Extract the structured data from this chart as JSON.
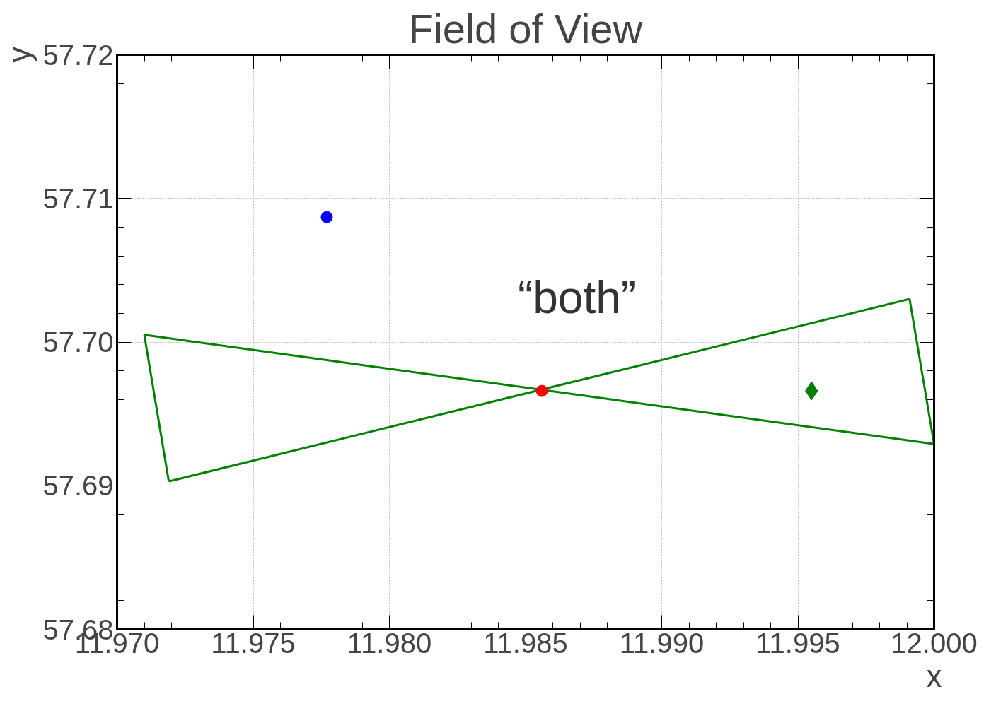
{
  "chart_data": {
    "type": "scatter",
    "title": "Field of View",
    "xlabel": "x",
    "ylabel": "y",
    "xlim": [
      11.97,
      12.0
    ],
    "ylim": [
      57.68,
      57.72
    ],
    "xticks": [
      {
        "value": 11.97,
        "label": "11.970"
      },
      {
        "value": 11.975,
        "label": "11.975"
      },
      {
        "value": 11.98,
        "label": "11.980"
      },
      {
        "value": 11.985,
        "label": "11.985"
      },
      {
        "value": 11.99,
        "label": "11.990"
      },
      {
        "value": 11.995,
        "label": "11.995"
      },
      {
        "value": 12.0,
        "label": "12.000"
      }
    ],
    "yticks": [
      {
        "value": 57.68,
        "label": "57.68"
      },
      {
        "value": 57.69,
        "label": "57.69"
      },
      {
        "value": 57.7,
        "label": "57.70"
      },
      {
        "value": 57.71,
        "label": "57.71"
      },
      {
        "value": 57.72,
        "label": "57.72"
      }
    ],
    "grid": true,
    "series": [
      {
        "type": "line",
        "color": "#008000",
        "marker": "none",
        "line_style": "solid",
        "x": [
          11.971,
          12.0
        ],
        "values": [
          57.7005,
          57.6929
        ]
      },
      {
        "type": "line",
        "color": "#008000",
        "marker": "none",
        "line_style": "solid",
        "x": [
          11.9991,
          12.0
        ],
        "values": [
          57.703,
          57.6929
        ]
      },
      {
        "type": "line",
        "color": "#008000",
        "marker": "none",
        "line_style": "solid",
        "x": [
          11.9719,
          11.9991
        ],
        "values": [
          57.6903,
          57.703
        ]
      },
      {
        "type": "line",
        "color": "#008000",
        "marker": "none",
        "line_style": "solid",
        "x": [
          11.971,
          11.9719
        ],
        "values": [
          57.7005,
          57.6903
        ]
      },
      {
        "type": "scatter",
        "color": "#0000ff",
        "marker": "circle",
        "x": [
          11.9777
        ],
        "values": [
          57.7087
        ]
      },
      {
        "type": "scatter",
        "color": "#ff0000",
        "marker": "circle",
        "x": [
          11.9856
        ],
        "values": [
          57.6966
        ]
      },
      {
        "type": "scatter",
        "color": "#008000",
        "marker": "diamond",
        "x": [
          11.9955
        ],
        "values": [
          57.6966
        ]
      }
    ],
    "annotations": [
      "“both”"
    ]
  }
}
